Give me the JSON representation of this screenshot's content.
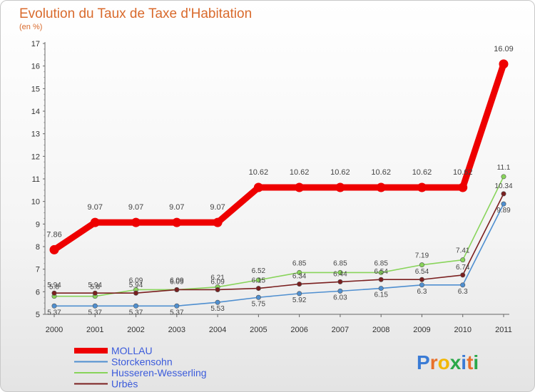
{
  "chart_data": {
    "type": "line",
    "title": "Evolution du Taux de Taxe d'Habitation",
    "subtitle": "(en %)",
    "x": [
      "2000",
      "2001",
      "2002",
      "2003",
      "2004",
      "2005",
      "2006",
      "2007",
      "2008",
      "2009",
      "2010",
      "2011"
    ],
    "ylim": [
      5,
      17
    ],
    "yticks": [
      5,
      6,
      7,
      8,
      9,
      10,
      11,
      12,
      13,
      14,
      15,
      16,
      17
    ],
    "grid": false,
    "legend_position": "bottom-left",
    "series": [
      {
        "name": "MOLLAU",
        "color": "#ee0000",
        "values": [
          7.86,
          9.07,
          9.07,
          9.07,
          9.07,
          10.62,
          10.62,
          10.62,
          10.62,
          10.62,
          10.62,
          16.09
        ],
        "labels": [
          "7.86",
          "9.07",
          "9.07",
          "9.07",
          "9.07",
          "10.62",
          "10.62",
          "10.62",
          "10.62",
          "10.62",
          "10.62",
          "16.09"
        ]
      },
      {
        "name": "Storckensohn",
        "color": "#4f8fd0",
        "values": [
          5.37,
          5.37,
          5.37,
          5.37,
          5.53,
          5.75,
          5.92,
          6.03,
          6.15,
          6.3,
          6.3,
          9.89
        ],
        "labels": [
          "5.37",
          "5.37",
          "5.37",
          "5.37",
          "5.53",
          "5.75",
          "5.92",
          "6.03",
          "6.15",
          "6.3",
          "6.3",
          "9.89"
        ]
      },
      {
        "name": "Husseren-Wesserling",
        "color": "#88d45a",
        "values": [
          5.8,
          5.8,
          6.09,
          6.09,
          6.21,
          6.52,
          6.85,
          6.85,
          6.85,
          7.19,
          7.41,
          11.1
        ],
        "labels": [
          "5.8",
          "5.8",
          "6.09",
          "6.09",
          "6.21",
          "6.52",
          "6.85",
          "6.85",
          "6.85",
          "7.19",
          "7.41",
          "11.1"
        ]
      },
      {
        "name": "Urbès",
        "color": "#7a1f1f",
        "values": [
          5.94,
          5.94,
          5.94,
          6.09,
          6.09,
          6.15,
          6.34,
          6.44,
          6.54,
          6.54,
          6.74,
          10.34
        ],
        "labels": [
          "5.94",
          "5.94",
          "5.94",
          "6.09",
          "6.09",
          "6.15",
          "6.34",
          "6.44",
          "6.54",
          "6.54",
          "6.74",
          "10.34"
        ]
      }
    ]
  },
  "logo": {
    "text": "Proxiti",
    "colors": [
      "#3a7bd5",
      "#e8702a",
      "#f2b705",
      "#2aa84a",
      "#3a7bd5",
      "#e8702a",
      "#2aa84a"
    ]
  }
}
